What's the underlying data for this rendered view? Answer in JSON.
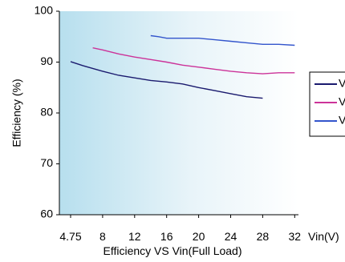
{
  "chart_data": {
    "type": "line",
    "title": "",
    "xlabel": "Efficiency VS Vin(Full Load)",
    "ylabel": "Efficiency (%)",
    "x_unit_label": "Vin(V)",
    "x_ticks": [
      "4.75",
      "8",
      "12",
      "16",
      "20",
      "24",
      "28",
      "32"
    ],
    "y_ticks": [
      "60",
      "70",
      "80",
      "90",
      "100"
    ],
    "ylim": [
      60,
      100
    ],
    "grid": false,
    "legend_position": "right (clipped)",
    "legend_labels": [
      "V",
      "V",
      "V"
    ],
    "series": [
      {
        "color": "#1a1a6e",
        "x": [
          4.75,
          6,
          8,
          10,
          12,
          14,
          16,
          18,
          20,
          22,
          24,
          26,
          28
        ],
        "y": [
          90.1,
          89.3,
          88.2,
          87.4,
          86.9,
          86.4,
          86.1,
          85.7,
          85.0,
          84.4,
          83.8,
          83.2,
          82.9
        ]
      },
      {
        "color": "#cc3399",
        "x": [
          7,
          8,
          10,
          12,
          14,
          16,
          18,
          20,
          22,
          24,
          26,
          28,
          30,
          32
        ],
        "y": [
          92.8,
          92.4,
          91.6,
          91.0,
          90.5,
          90.0,
          89.4,
          89.0,
          88.6,
          88.2,
          87.9,
          87.7,
          87.9,
          87.9
        ]
      },
      {
        "color": "#3355cc",
        "x": [
          14,
          15,
          16,
          18,
          20,
          22,
          24,
          26,
          28,
          30,
          32
        ],
        "y": [
          95.2,
          95.0,
          94.7,
          94.7,
          94.7,
          94.4,
          94.1,
          93.8,
          93.5,
          93.5,
          93.3
        ]
      }
    ]
  }
}
